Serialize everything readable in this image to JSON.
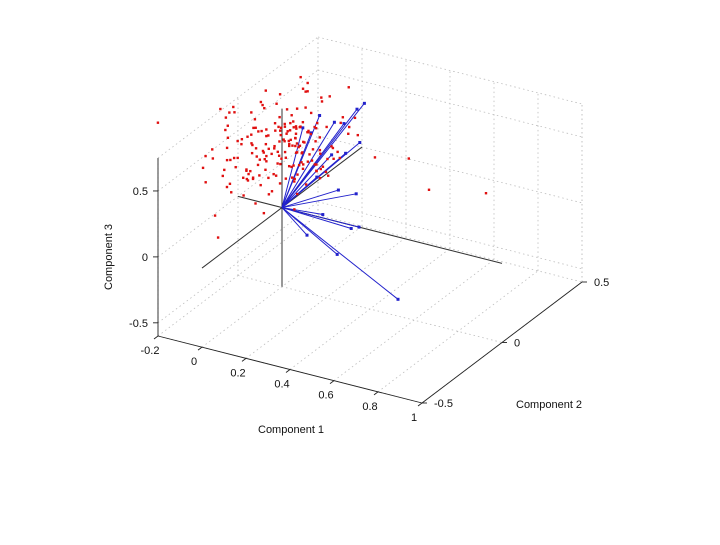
{
  "chart_data": {
    "type": "scatter",
    "projection": "3d",
    "title": "",
    "xlabel": "Component 1",
    "ylabel": "Component 2",
    "zlabel": "Component 3",
    "xlim": [
      -0.2,
      1.0
    ],
    "ylim": [
      -0.5,
      0.5
    ],
    "zlim": [
      -0.6,
      0.75
    ],
    "xticks": [
      -0.2,
      0,
      0.2,
      0.4,
      0.6,
      0.8,
      1
    ],
    "yticks": [
      -0.5,
      0,
      0.5
    ],
    "zticks": [
      -0.5,
      0,
      0.5
    ],
    "xtick_labels": [
      "-0.2",
      "0",
      "0.2",
      "0.4",
      "0.6",
      "0.8",
      "1"
    ],
    "ytick_labels": [
      "-0.5",
      "0",
      "0.5"
    ],
    "ztick_labels": [
      "-0.5",
      "0",
      "0.5"
    ],
    "grid": true,
    "colors": {
      "scores": "#e01010",
      "vectors": "#2222cc",
      "axes": "#333333"
    },
    "series": [
      {
        "kind": "vectors",
        "points": [
          [
            0.08,
            0.02,
            0.62
          ],
          [
            0.06,
            0.1,
            0.5
          ],
          [
            0.04,
            0.18,
            0.55
          ],
          [
            0.1,
            0.25,
            0.45
          ],
          [
            0.02,
            0.3,
            0.38
          ],
          [
            0.12,
            0.35,
            0.52
          ],
          [
            0.05,
            0.4,
            0.4
          ],
          [
            0.15,
            0.28,
            0.3
          ],
          [
            0.08,
            0.2,
            0.25
          ],
          [
            0.18,
            0.15,
            0.35
          ],
          [
            0.22,
            0.05,
            0.18
          ],
          [
            0.25,
            0.12,
            0.1
          ],
          [
            0.1,
            0.08,
            0.2
          ],
          [
            0.3,
            0.02,
            -0.05
          ],
          [
            0.2,
            -0.02,
            0.05
          ],
          [
            0.35,
            0.0,
            0.0
          ],
          [
            0.15,
            -0.05,
            -0.1
          ],
          [
            0.28,
            -0.04,
            -0.2
          ],
          [
            0.6,
            -0.1,
            -0.35
          ]
        ]
      },
      {
        "kind": "scores",
        "count": 200,
        "center": [
          0.0,
          0.0,
          0.45
        ],
        "spread": [
          0.12,
          0.14,
          0.15
        ],
        "outliers": [
          [
            0.6,
            0.45,
            -0.05
          ],
          [
            0.45,
            0.3,
            0.05
          ],
          [
            0.3,
            0.38,
            0.15
          ]
        ]
      }
    ]
  }
}
